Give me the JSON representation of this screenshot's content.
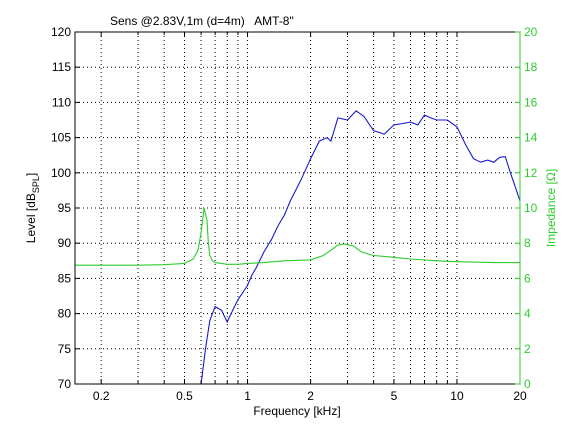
{
  "chart_data": {
    "type": "line",
    "title": "Sens @2.83V,1m (d=4m)   AMT-8\"",
    "xlabel": "Frequency [kHz]",
    "x_scale": "log",
    "xlim": [
      0.15,
      20
    ],
    "x_ticks": [
      0.2,
      0.5,
      1,
      2,
      5,
      10,
      20
    ],
    "x_tick_labels": [
      "0.2",
      "0.5",
      "1",
      "2",
      "5",
      "10",
      "20"
    ],
    "ylabel_left": {
      "pre": "Level [dB",
      "sub": "SPL",
      "post": "]"
    },
    "ylim_left": [
      70,
      120
    ],
    "y_ticks_left": [
      70,
      75,
      80,
      85,
      90,
      95,
      100,
      105,
      110,
      115,
      120
    ],
    "ylabel_right": "Impedance [Ω]",
    "ylim_right": [
      0,
      20
    ],
    "y_ticks_right": [
      0,
      2,
      4,
      6,
      8,
      10,
      12,
      14,
      16,
      18,
      20
    ],
    "grid": true,
    "colors": {
      "level": "#1a1acc",
      "impedance": "#2ecc2e",
      "grid": "#000000"
    },
    "series": [
      {
        "axis": "left",
        "x": [
          0.6,
          0.63,
          0.66,
          0.7,
          0.75,
          0.8,
          0.85,
          0.9,
          0.95,
          1.0,
          1.05,
          1.1,
          1.2,
          1.3,
          1.4,
          1.5,
          1.6,
          1.8,
          2.0,
          2.2,
          2.4,
          2.5,
          2.7,
          3.0,
          3.3,
          3.6,
          4.0,
          4.5,
          5.0,
          5.5,
          6.0,
          6.5,
          7.0,
          7.5,
          8.0,
          9.0,
          10.0,
          11.0,
          12.0,
          13.0,
          14.0,
          15.0,
          16.0,
          17.0,
          18.0,
          19.0,
          20.0
        ],
        "values": [
          70,
          75,
          79,
          81,
          80.5,
          78.8,
          80.5,
          82,
          83,
          84,
          85.5,
          86.5,
          88.8,
          90.5,
          92.5,
          94,
          96,
          99,
          102,
          104.5,
          105,
          104.5,
          107.8,
          107.5,
          108.8,
          108,
          106,
          105.5,
          106.8,
          107,
          107.2,
          106.8,
          108.2,
          107.8,
          107.5,
          107.5,
          106.5,
          104,
          102,
          101.5,
          101.8,
          101.5,
          102.2,
          102.3,
          100,
          98,
          96
        ]
      },
      {
        "axis": "right",
        "x": [
          0.15,
          0.3,
          0.4,
          0.5,
          0.55,
          0.58,
          0.6,
          0.62,
          0.64,
          0.65,
          0.66,
          0.68,
          0.7,
          0.75,
          0.8,
          0.9,
          1.0,
          1.2,
          1.5,
          2.0,
          2.3,
          2.5,
          2.7,
          2.9,
          3.2,
          3.5,
          4.0,
          5.0,
          6.0,
          8.0,
          10.0,
          15.0,
          20.0
        ],
        "values": [
          6.75,
          6.75,
          6.78,
          6.85,
          7.1,
          7.6,
          8.6,
          10.0,
          9.3,
          8.0,
          7.3,
          7.0,
          6.9,
          6.85,
          6.8,
          6.8,
          6.85,
          6.9,
          7.0,
          7.05,
          7.3,
          7.6,
          7.9,
          7.95,
          7.85,
          7.5,
          7.3,
          7.2,
          7.1,
          7.0,
          6.95,
          6.9,
          6.9
        ]
      }
    ]
  }
}
